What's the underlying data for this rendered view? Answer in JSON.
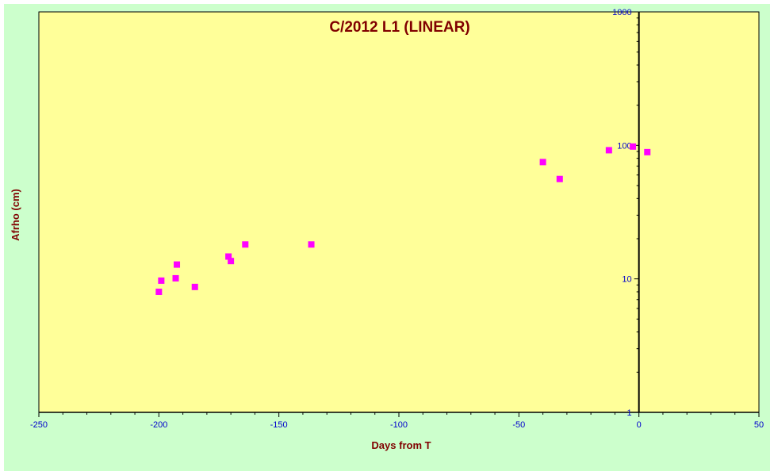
{
  "colors": {
    "outer_background": "#CCFFCC",
    "plot_background": "#FFFF99",
    "title": "#800000",
    "axis_label": "#800000",
    "tick_label": "#0000CC",
    "axis_line": "#000000",
    "marker": "#FF00FF"
  },
  "chart_data": {
    "type": "scatter",
    "title": "C/2012 L1 (LINEAR)",
    "xlabel": "Days from T",
    "ylabel": "Afrho (cm)",
    "xlim": [
      -250,
      50
    ],
    "ylim": [
      1,
      1000
    ],
    "y_scale": "log",
    "grid": false,
    "legend": "none",
    "x_ticks": [
      -250,
      -200,
      -150,
      -100,
      -50,
      0,
      50
    ],
    "x_tick_labels": [
      "-250",
      "-200",
      "-150",
      "-100",
      "-50",
      "0",
      "50"
    ],
    "y_ticks": [
      1,
      10,
      100,
      1000
    ],
    "y_tick_labels": [
      "1",
      "10",
      "100",
      "1000"
    ],
    "marker": "square",
    "series": [
      {
        "points": [
          {
            "x": -200,
            "y": 8.0
          },
          {
            "x": -199,
            "y": 9.7
          },
          {
            "x": -193,
            "y": 10.1
          },
          {
            "x": -192.5,
            "y": 12.8
          },
          {
            "x": -185,
            "y": 8.7
          },
          {
            "x": -171,
            "y": 14.7
          },
          {
            "x": -170,
            "y": 13.6
          },
          {
            "x": -164,
            "y": 18.1
          },
          {
            "x": -136.5,
            "y": 18.1
          },
          {
            "x": -40,
            "y": 75
          },
          {
            "x": -33,
            "y": 56
          },
          {
            "x": -12.5,
            "y": 92
          },
          {
            "x": -2.5,
            "y": 98
          },
          {
            "x": 3.5,
            "y": 89
          }
        ]
      }
    ]
  }
}
